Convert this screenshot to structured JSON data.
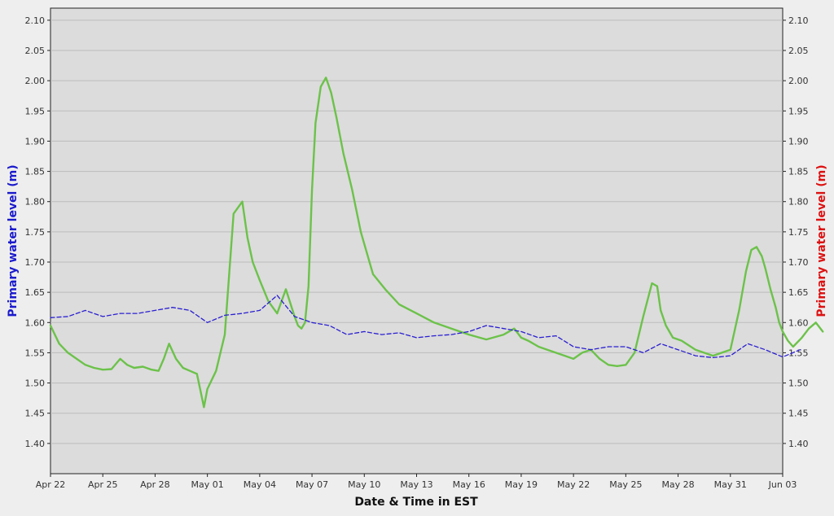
{
  "chart_data": {
    "type": "line",
    "xlabel": "Date & Time in EST",
    "ylabel_left": "Primary water level (m)",
    "ylabel_right": "Primary water level (m)",
    "x_tick_labels": [
      "Apr 22",
      "Apr 25",
      "Apr 28",
      "May 01",
      "May 04",
      "May 07",
      "May 10",
      "May 13",
      "May 16",
      "May 19",
      "May 22",
      "May 25",
      "May 28",
      "May 31",
      "Jun 03"
    ],
    "xlim_days": [
      0,
      42
    ],
    "ylim": [
      1.35,
      2.12
    ],
    "y_ticks": [
      "1.40",
      "1.45",
      "1.50",
      "1.55",
      "1.60",
      "1.65",
      "1.70",
      "1.75",
      "1.80",
      "1.85",
      "1.90",
      "1.95",
      "2.00",
      "2.05",
      "2.10"
    ],
    "grid": true,
    "colors": {
      "plot_background": "#dcdcdc",
      "grid": "#bbbbbb",
      "series_green": "#6cc24a",
      "series_blue": "#2a1fd0",
      "left_label": "#1a1acc",
      "right_label": "#dd1111"
    },
    "series": [
      {
        "style": "solid",
        "color": "#6cc24a",
        "x": [
          0,
          0.5,
          1,
          1.5,
          2,
          2.5,
          3,
          3.5,
          4,
          4.4,
          4.8,
          5.3,
          5.8,
          6.2,
          6.5,
          6.8,
          7.2,
          7.6,
          8.0,
          8.4,
          8.8,
          9.0,
          9.5,
          10,
          10.5,
          11,
          11.3,
          11.6,
          12,
          12.5,
          13,
          13.5,
          14,
          14.2,
          14.4,
          14.6,
          14.8,
          15,
          15.2,
          15.5,
          15.8,
          16.1,
          16.4,
          16.8,
          17.3,
          17.8,
          18.5,
          19.2,
          20,
          21,
          22,
          23,
          24,
          25,
          26,
          26.6,
          27,
          27.4,
          28,
          28.5,
          29.5,
          30,
          30.5,
          31,
          31.5,
          32,
          32.5,
          33,
          33.5,
          34,
          34.5,
          34.8,
          35.0,
          35.3,
          35.7,
          36.2,
          37,
          38,
          39,
          39.5,
          39.9,
          40.2,
          40.5,
          40.8,
          41.0,
          41.3,
          41.6,
          41.8,
          42.0,
          42.3,
          42.6,
          43.1,
          43.5,
          43.9,
          44.3
        ],
        "y": [
          1.595,
          1.565,
          1.55,
          1.54,
          1.53,
          1.525,
          1.522,
          1.523,
          1.54,
          1.53,
          1.525,
          1.527,
          1.522,
          1.52,
          1.54,
          1.565,
          1.54,
          1.525,
          1.52,
          1.515,
          1.46,
          1.49,
          1.52,
          1.58,
          1.78,
          1.8,
          1.74,
          1.7,
          1.67,
          1.635,
          1.615,
          1.655,
          1.61,
          1.595,
          1.59,
          1.6,
          1.66,
          1.82,
          1.93,
          1.99,
          2.005,
          1.98,
          1.94,
          1.88,
          1.82,
          1.75,
          1.68,
          1.655,
          1.63,
          1.615,
          1.6,
          1.59,
          1.58,
          1.572,
          1.58,
          1.59,
          1.575,
          1.57,
          1.56,
          1.555,
          1.545,
          1.54,
          1.55,
          1.555,
          1.54,
          1.53,
          1.528,
          1.53,
          1.55,
          1.61,
          1.665,
          1.66,
          1.62,
          1.595,
          1.575,
          1.57,
          1.555,
          1.545,
          1.555,
          1.62,
          1.685,
          1.72,
          1.725,
          1.71,
          1.69,
          1.655,
          1.625,
          1.6,
          1.585,
          1.57,
          1.56,
          1.575,
          1.59,
          1.6,
          1.585
        ]
      },
      {
        "style": "dashed",
        "color": "#2a1fd0",
        "x": [
          0,
          1,
          2,
          3,
          4,
          5,
          6,
          7,
          8,
          8.5,
          9,
          10,
          11,
          12,
          13,
          14,
          15,
          16,
          17,
          18,
          19,
          20,
          21,
          22,
          23,
          24,
          25,
          26,
          27,
          28,
          29,
          30,
          31,
          32,
          33,
          34,
          35,
          36,
          37,
          38,
          39,
          40,
          41,
          42,
          43
        ],
        "y": [
          1.608,
          1.61,
          1.62,
          1.61,
          1.615,
          1.615,
          1.62,
          1.625,
          1.62,
          1.61,
          1.6,
          1.612,
          1.615,
          1.62,
          1.645,
          1.61,
          1.6,
          1.595,
          1.58,
          1.585,
          1.58,
          1.583,
          1.575,
          1.578,
          1.58,
          1.585,
          1.595,
          1.59,
          1.585,
          1.575,
          1.578,
          1.56,
          1.555,
          1.56,
          1.56,
          1.55,
          1.565,
          1.555,
          1.545,
          1.542,
          1.545,
          1.565,
          1.555,
          1.543,
          1.555
        ]
      }
    ]
  }
}
